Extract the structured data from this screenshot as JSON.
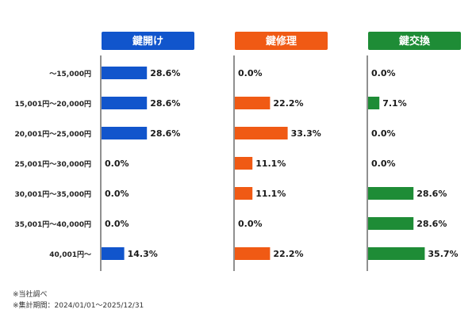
{
  "chart_data": {
    "type": "bar",
    "categories": [
      "〜15,000円",
      "15,001円〜20,000円",
      "20,001円〜25,000円",
      "25,001円〜30,000円",
      "30,001円〜35,000円",
      "35,001円〜40,000円",
      "40,001円〜"
    ],
    "series": [
      {
        "name": "鍵開け",
        "color": "#1155cc",
        "values": [
          28.6,
          28.6,
          28.6,
          0.0,
          0.0,
          0.0,
          14.3
        ]
      },
      {
        "name": "鍵修理",
        "color": "#f05a14",
        "values": [
          0.0,
          22.2,
          33.3,
          11.1,
          11.1,
          0.0,
          22.2
        ]
      },
      {
        "name": "鍵交換",
        "color": "#1e8c36",
        "values": [
          0.0,
          7.1,
          0.0,
          0.0,
          28.6,
          28.6,
          35.7
        ]
      }
    ],
    "value_format": "percent_1dp",
    "layout": "small-multiples-horizontal-bars",
    "grid": false
  },
  "footnotes": {
    "source": "※当社調べ",
    "period": "※集計期間：2024/01/01〜2025/12/31"
  }
}
